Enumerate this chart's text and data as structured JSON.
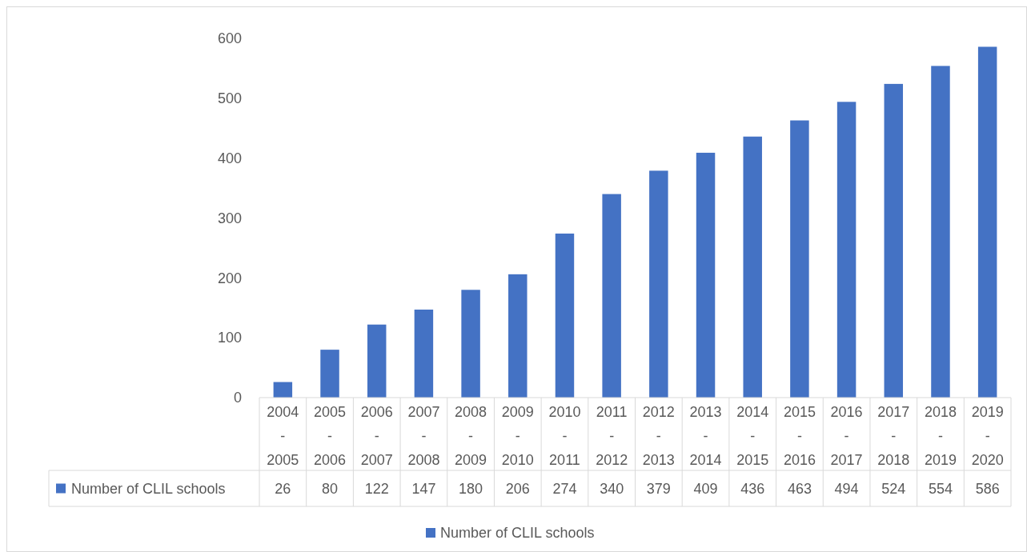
{
  "chart_data": {
    "type": "bar",
    "categories": [
      "2004 - 2005",
      "2005 - 2006",
      "2006 - 2007",
      "2007 - 2008",
      "2008 - 2009",
      "2009 - 2010",
      "2010 - 2011",
      "2011 - 2012",
      "2012 - 2013",
      "2013 - 2014",
      "2014 - 2015",
      "2015 - 2016",
      "2016 - 2017",
      "2017 - 2018",
      "2018 - 2019",
      "2019 - 2020"
    ],
    "series": [
      {
        "name": "Number of CLIL schools",
        "color": "#4472c4",
        "values": [
          26,
          80,
          122,
          147,
          180,
          206,
          274,
          340,
          379,
          409,
          436,
          463,
          494,
          524,
          554,
          586
        ]
      }
    ],
    "ylim": [
      0,
      600
    ],
    "yticks": [
      0,
      100,
      200,
      300,
      400,
      500,
      600
    ],
    "data_labels": true,
    "grid": false,
    "legend": "bottom"
  }
}
